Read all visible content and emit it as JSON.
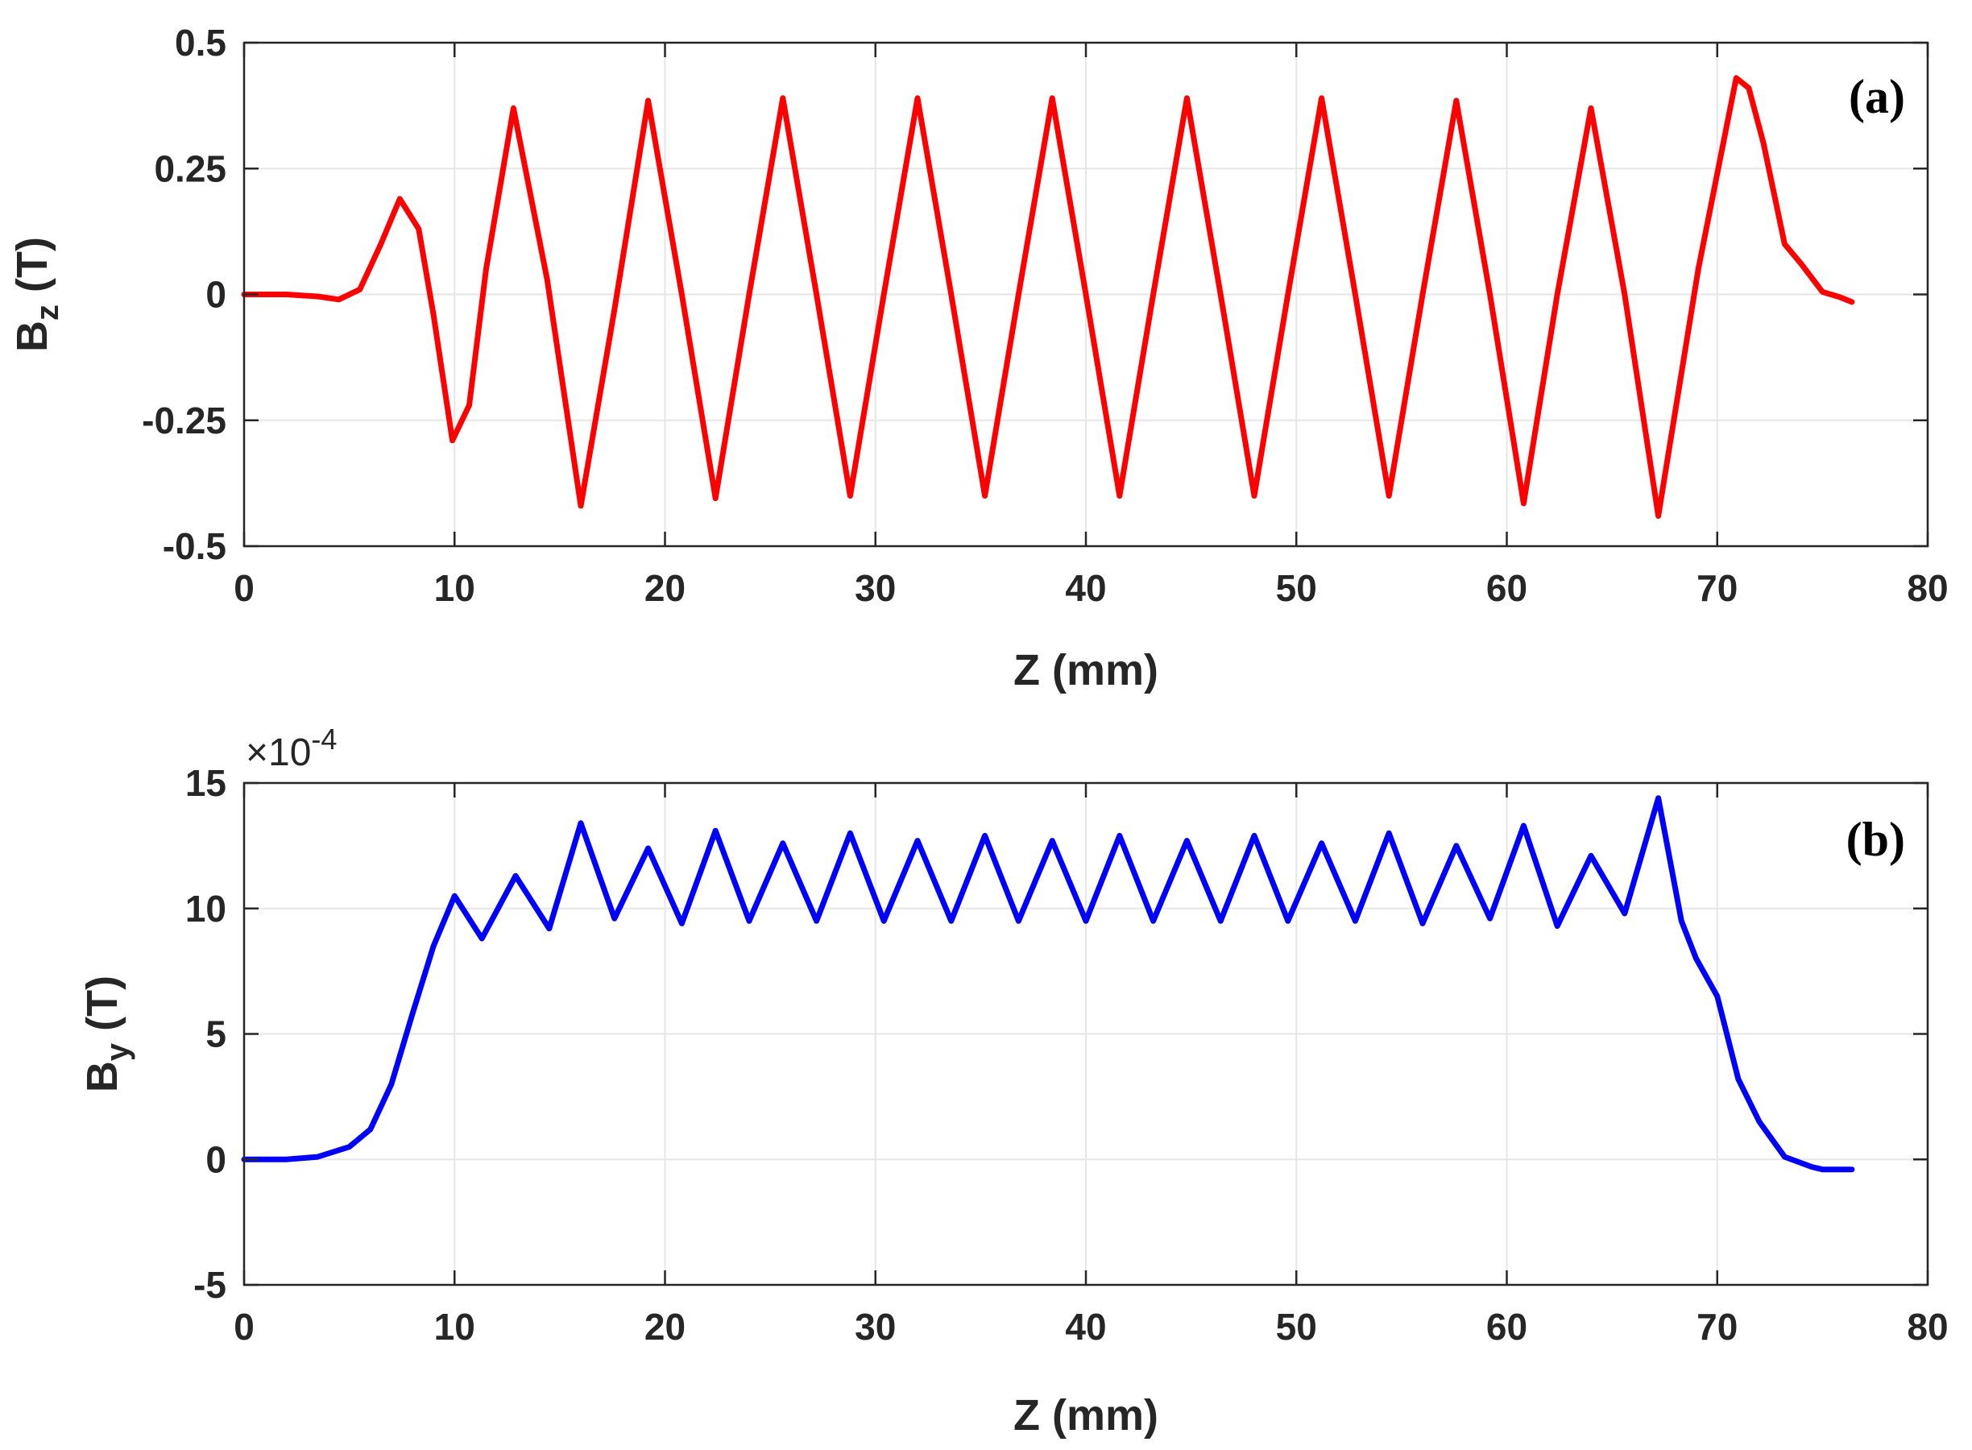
{
  "chart_data": [
    {
      "type": "line",
      "panel_label": "(a)",
      "xlabel": "Z (mm)",
      "ylabel_main": "B",
      "ylabel_sub": "z",
      "ylabel_unit": " (T)",
      "xlim": [
        0,
        80
      ],
      "ylim": [
        -0.5,
        0.5
      ],
      "xticks": [
        "0",
        "10",
        "20",
        "30",
        "40",
        "50",
        "60",
        "70",
        "80"
      ],
      "xtick_values": [
        0,
        10,
        20,
        30,
        40,
        50,
        60,
        70,
        80
      ],
      "yticks": [
        "0.5",
        "0.25",
        "0",
        "-0.25",
        "-0.5"
      ],
      "ytick_values": [
        0.5,
        0.25,
        0,
        -0.25,
        -0.5
      ],
      "grid": true,
      "color": "#ff0000",
      "series": [
        {
          "x": [
            0,
            2,
            3.5,
            4.5,
            5.5,
            6.5,
            7.4,
            8.3,
            9.0,
            9.9,
            10.7,
            11.5,
            12.8,
            14.4,
            16.0,
            17.6,
            19.2,
            20.8,
            22.4,
            24.0,
            25.6,
            27.2,
            28.8,
            30.4,
            32.0,
            33.6,
            35.2,
            36.8,
            38.4,
            40.0,
            41.6,
            43.2,
            44.8,
            46.4,
            48.0,
            49.6,
            51.2,
            52.8,
            54.4,
            56.0,
            57.6,
            59.2,
            60.8,
            62.4,
            64.0,
            65.6,
            67.2,
            69.1,
            70.9,
            71.5,
            72.2,
            73.2,
            74.0,
            75.0,
            75.8,
            76.4
          ],
          "y": [
            0,
            0,
            -0.004,
            -0.01,
            0.01,
            0.1,
            0.19,
            0.13,
            -0.04,
            -0.29,
            -0.22,
            0.05,
            0.37,
            0.03,
            -0.42,
            -0.03,
            0.385,
            0.0,
            -0.405,
            0.0,
            0.39,
            0.0,
            -0.4,
            0.0,
            0.39,
            0.0,
            -0.4,
            0.0,
            0.39,
            0.0,
            -0.4,
            0.0,
            0.39,
            0.0,
            -0.4,
            0.0,
            0.39,
            0.0,
            -0.4,
            0.0,
            0.385,
            0.0,
            -0.415,
            0.0,
            0.37,
            0.0,
            -0.44,
            0.05,
            0.43,
            0.41,
            0.3,
            0.1,
            0.06,
            0.005,
            -0.005,
            -0.015
          ]
        }
      ]
    },
    {
      "type": "line",
      "panel_label": "(b)",
      "xlabel": "Z (mm)",
      "ylabel_main": "B",
      "ylabel_sub": "y",
      "ylabel_unit": " (T)",
      "multiplier_base": "×10",
      "multiplier_exp": "-4",
      "xlim": [
        0,
        80
      ],
      "ylim": [
        -5,
        15
      ],
      "xticks": [
        "0",
        "10",
        "20",
        "30",
        "40",
        "50",
        "60",
        "70",
        "80"
      ],
      "xtick_values": [
        0,
        10,
        20,
        30,
        40,
        50,
        60,
        70,
        80
      ],
      "yticks": [
        "15",
        "10",
        "5",
        "0",
        "-5"
      ],
      "ytick_values": [
        15,
        10,
        5,
        0,
        -5
      ],
      "grid": true,
      "color": "#0000ff",
      "series": [
        {
          "x": [
            0,
            2,
            3.5,
            5.0,
            6.0,
            7.0,
            8.0,
            9.0,
            10.0,
            11.3,
            12.9,
            14.5,
            16.0,
            17.6,
            19.2,
            20.8,
            22.4,
            24.0,
            25.6,
            27.2,
            28.8,
            30.4,
            32.0,
            33.6,
            35.2,
            36.8,
            38.4,
            40.0,
            41.6,
            43.2,
            44.8,
            46.4,
            48.0,
            49.6,
            51.2,
            52.8,
            54.4,
            56.0,
            57.6,
            59.2,
            60.8,
            62.4,
            64.0,
            65.6,
            67.2,
            68.3,
            69.0,
            70.0,
            71.0,
            72.0,
            73.2,
            74.5,
            75.0,
            76.4
          ],
          "y": [
            0,
            0,
            0.1,
            0.5,
            1.2,
            3.0,
            5.8,
            8.5,
            10.5,
            8.8,
            11.3,
            9.2,
            13.4,
            9.6,
            12.4,
            9.4,
            13.1,
            9.5,
            12.6,
            9.5,
            13.0,
            9.5,
            12.7,
            9.5,
            12.9,
            9.5,
            12.7,
            9.5,
            12.9,
            9.5,
            12.7,
            9.5,
            12.9,
            9.5,
            12.6,
            9.5,
            13.0,
            9.4,
            12.5,
            9.6,
            13.3,
            9.3,
            12.1,
            9.8,
            14.4,
            9.5,
            8.0,
            6.5,
            3.2,
            1.5,
            0.1,
            -0.3,
            -0.4,
            -0.4
          ]
        }
      ]
    }
  ]
}
